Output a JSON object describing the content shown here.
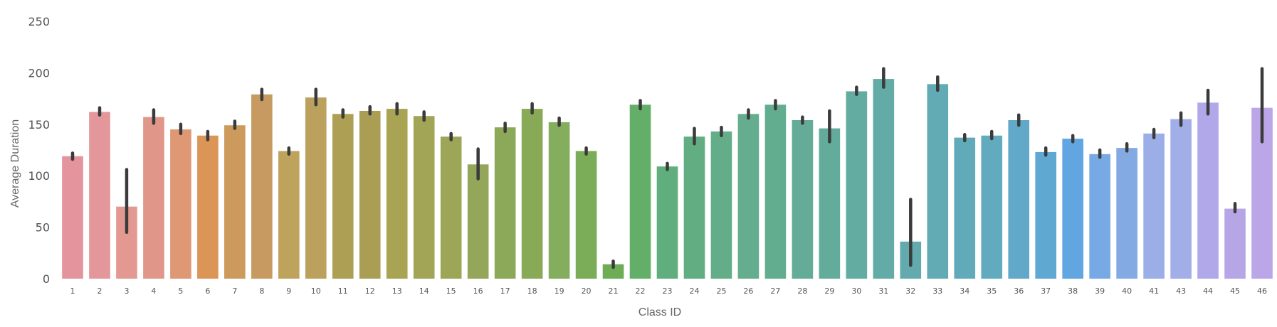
{
  "chart_data": {
    "type": "bar",
    "title": "",
    "xlabel": "Class ID",
    "ylabel": "Average Duration",
    "ylim": [
      0,
      250
    ],
    "yticks": [
      0,
      50,
      100,
      150,
      200,
      250
    ],
    "grid": false,
    "categories": [
      "1",
      "2",
      "3",
      "4",
      "5",
      "6",
      "7",
      "8",
      "9",
      "10",
      "11",
      "12",
      "13",
      "14",
      "15",
      "16",
      "17",
      "18",
      "19",
      "20",
      "21",
      "22",
      "23",
      "24",
      "25",
      "26",
      "27",
      "28",
      "29",
      "30",
      "31",
      "32",
      "33",
      "34",
      "35",
      "36",
      "37",
      "38",
      "39",
      "40",
      "41",
      "43",
      "44",
      "45",
      "46"
    ],
    "values": [
      119,
      162,
      70,
      157,
      145,
      139,
      149,
      179,
      124,
      176,
      160,
      163,
      165,
      158,
      138,
      111,
      147,
      165,
      152,
      124,
      14,
      169,
      109,
      138,
      143,
      160,
      169,
      154,
      146,
      182,
      194,
      36,
      189,
      137,
      139,
      154,
      123,
      136,
      121,
      127,
      141,
      155,
      171,
      68,
      166
    ],
    "error_low": [
      116,
      159,
      45,
      151,
      141,
      135,
      146,
      174,
      121,
      169,
      157,
      160,
      160,
      154,
      135,
      97,
      143,
      161,
      149,
      121,
      11,
      165,
      106,
      131,
      139,
      156,
      165,
      151,
      133,
      179,
      186,
      13,
      183,
      134,
      136,
      149,
      120,
      133,
      118,
      124,
      137,
      149,
      160,
      65,
      133
    ],
    "error_high": [
      122,
      166,
      106,
      164,
      150,
      143,
      153,
      184,
      127,
      184,
      164,
      167,
      170,
      162,
      141,
      126,
      151,
      170,
      156,
      127,
      17,
      173,
      112,
      146,
      147,
      164,
      173,
      157,
      163,
      186,
      204,
      77,
      196,
      140,
      143,
      159,
      127,
      139,
      125,
      131,
      145,
      161,
      183,
      73,
      204
    ],
    "colors": [
      "#e3949c",
      "#e3979a",
      "#e39991",
      "#e09688",
      "#de9874",
      "#da9557",
      "#cb9a5c",
      "#c69a60",
      "#bea35c",
      "#bba05e",
      "#ad9f54",
      "#aa9e54",
      "#a9a354",
      "#a2a556",
      "#9ca656",
      "#94a659",
      "#8ca859",
      "#88a956",
      "#84ad5d",
      "#7bad58",
      "#6dad56",
      "#63af6a",
      "#60ae7d",
      "#62ad81",
      "#63ae88",
      "#64ad8e",
      "#62ad90",
      "#64ac97",
      "#63ac9b",
      "#63aca1",
      "#63aba7",
      "#62aaae",
      "#62abb5",
      "#60aab9",
      "#62abbf",
      "#62a8c8",
      "#5ea8d2",
      "#61a6e1",
      "#77a9e4",
      "#84aae4",
      "#9baee7",
      "#a2aee8",
      "#b0a8e8",
      "#b6a6e6",
      "#bba6e7"
    ]
  }
}
